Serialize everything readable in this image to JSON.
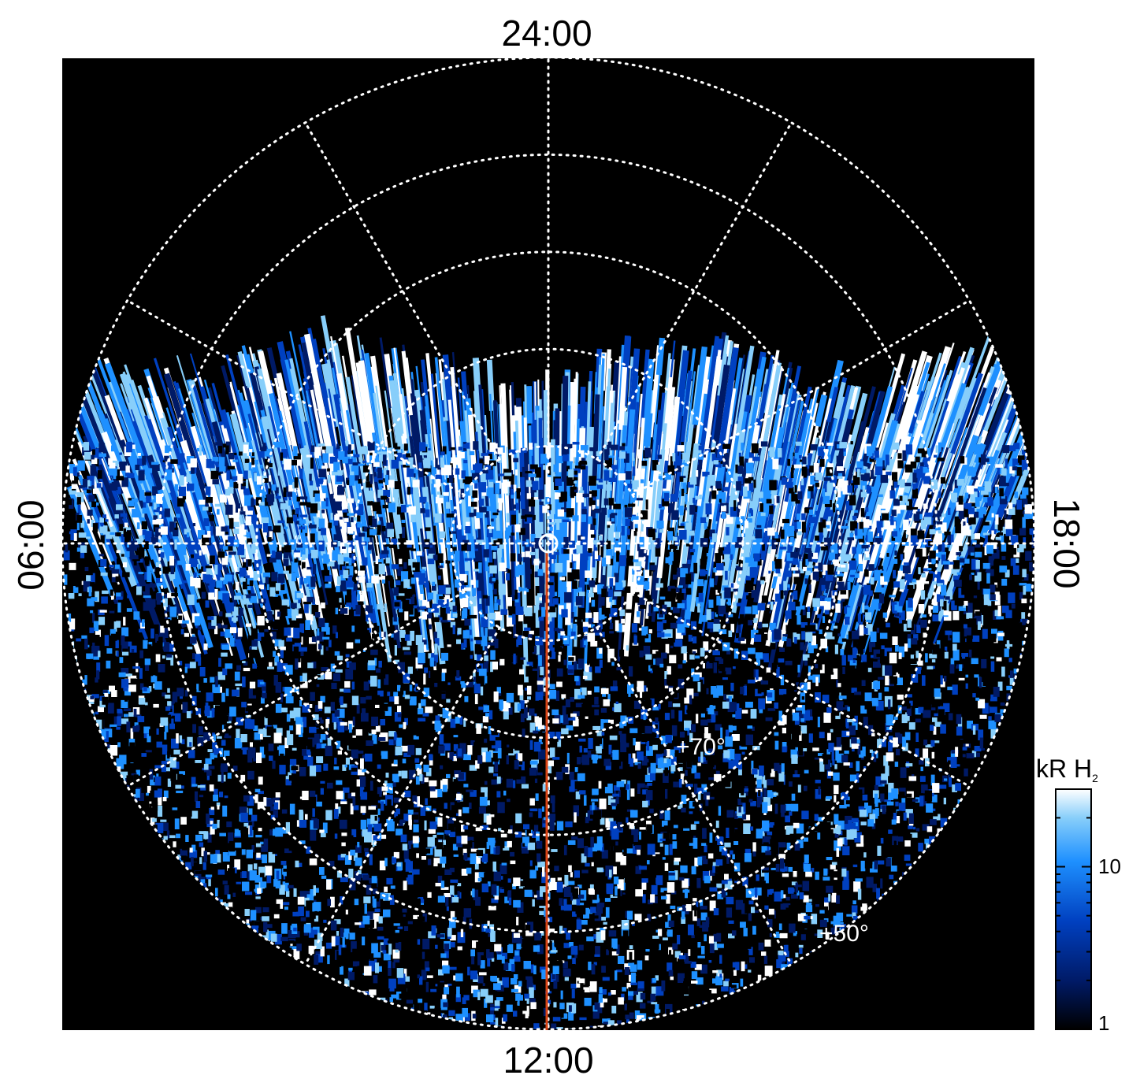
{
  "chart_data": {
    "type": "heatmap",
    "projection": "polar",
    "title": "",
    "local_time_labels": {
      "top": "24:00",
      "bottom": "12:00",
      "left": "06:00",
      "right": "18:00"
    },
    "latitude_labels": [
      "+70°",
      "+50°"
    ],
    "latitude_circles_deg": [
      80,
      70,
      60,
      50,
      40
    ],
    "local_time_meridians_hours": [
      0,
      2,
      4,
      6,
      8,
      10,
      12,
      14,
      16,
      18,
      20,
      22
    ],
    "highlight_meridian": {
      "hour": "12:00",
      "color": "#d84315"
    },
    "colorbar": {
      "label": "kR H",
      "label_subscript": "2",
      "scale": "log",
      "range": [
        1,
        30
      ],
      "tick_labels": [
        "10",
        "1"
      ],
      "tick_values": [
        10,
        1
      ],
      "colors": [
        "#000000",
        "#001a66",
        "#0040c0",
        "#1e90ff",
        "#87cefa",
        "#ffffff"
      ]
    },
    "grid": true,
    "background_color": "#000000",
    "gridline_color": "#ffffff"
  }
}
